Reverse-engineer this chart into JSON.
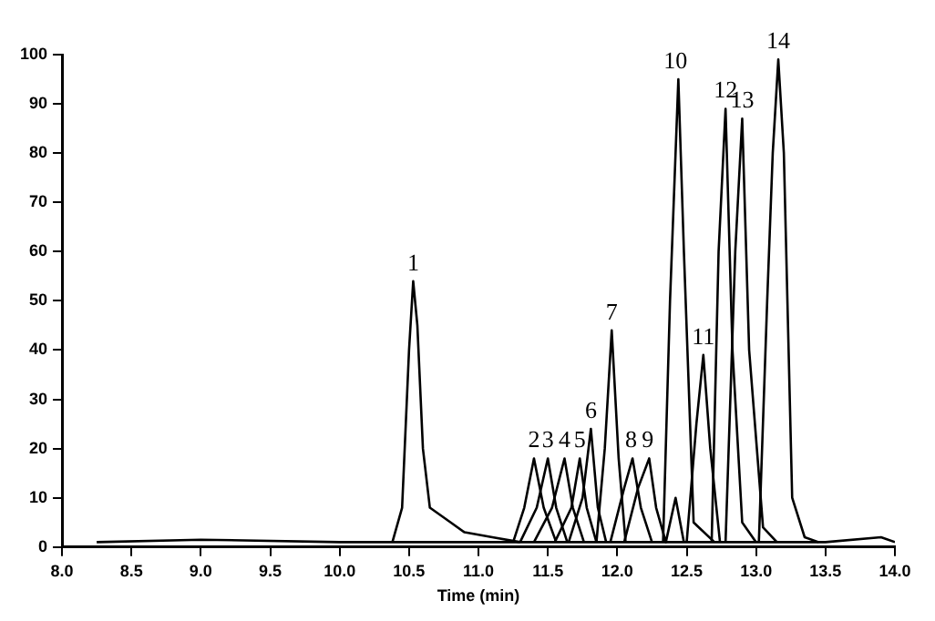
{
  "chart_data": {
    "type": "line",
    "xlabel": "Time (min)",
    "xlim": [
      8,
      14
    ],
    "xticks": [
      {
        "value": 8,
        "label": "8.0"
      },
      8.5,
      {
        "value": 9,
        "label": "9.0"
      },
      9.5,
      {
        "value": 10,
        "label": "10.0"
      },
      10.5,
      {
        "value": 11,
        "label": "11.0"
      },
      11.5,
      {
        "value": 12,
        "label": "12.0"
      },
      12.5,
      {
        "value": 13,
        "label": "13.0"
      },
      13.5,
      {
        "value": 14,
        "label": "14.0"
      }
    ],
    "ylim": [
      0,
      100
    ],
    "yticks": [
      0,
      10,
      20,
      30,
      40,
      50,
      60,
      70,
      80,
      90,
      100
    ],
    "grid": false,
    "legend": false,
    "marker": "none",
    "line_style": "solid",
    "series": [
      {
        "color": "#000000",
        "x": [
          8.25,
          9,
          10,
          11,
          12,
          13.5,
          13.9,
          14
        ],
        "values": [
          1,
          1.5,
          1,
          1,
          1,
          1,
          2,
          1
        ]
      },
      {
        "color": "#000000",
        "x": [
          10.38,
          10.45,
          10.5,
          10.53,
          10.56,
          10.6,
          10.65,
          10.8,
          10.9,
          11.1,
          11.3
        ],
        "values": [
          1,
          8,
          40,
          54,
          45,
          20,
          8,
          5,
          3,
          2,
          1
        ]
      },
      {
        "color": "#000000",
        "x": [
          11.25,
          11.33,
          11.4,
          11.47,
          11.56
        ],
        "values": [
          1,
          8,
          18,
          8,
          1
        ]
      },
      {
        "color": "#000000",
        "x": [
          11.3,
          11.42,
          11.5,
          11.56,
          11.64
        ],
        "values": [
          1,
          8,
          18,
          8,
          1
        ]
      },
      {
        "color": "#000000",
        "x": [
          11.4,
          11.53,
          11.62,
          11.68,
          11.76
        ],
        "values": [
          1,
          8,
          18,
          8,
          1
        ]
      },
      {
        "color": "#000000",
        "x": [
          11.55,
          11.67,
          11.73,
          11.78,
          11.85
        ],
        "values": [
          1,
          8,
          18,
          8,
          1
        ]
      },
      {
        "color": "#000000",
        "x": [
          11.65,
          11.75,
          11.81,
          11.86,
          11.92
        ],
        "values": [
          1,
          10,
          24,
          8,
          1
        ]
      },
      {
        "color": "#000000",
        "x": [
          11.85,
          11.91,
          11.96,
          12.01,
          12.06
        ],
        "values": [
          1,
          20,
          44,
          18,
          1
        ]
      },
      {
        "color": "#000000",
        "x": [
          11.95,
          12.05,
          12.11,
          12.17,
          12.25
        ],
        "values": [
          1,
          12,
          18,
          8,
          1
        ]
      },
      {
        "color": "#000000",
        "x": [
          12.05,
          12.15,
          12.23,
          12.28,
          12.35,
          12.42,
          12.48
        ],
        "values": [
          1,
          12,
          18,
          8,
          1,
          10,
          1
        ]
      },
      {
        "color": "#000000",
        "x": [
          12.33,
          12.38,
          12.44,
          12.48,
          12.55,
          12.7
        ],
        "values": [
          1,
          50,
          95,
          60,
          5,
          1
        ]
      },
      {
        "color": "#000000",
        "x": [
          12.5,
          12.57,
          12.62,
          12.67,
          12.74
        ],
        "values": [
          1,
          25,
          39,
          20,
          1
        ]
      },
      {
        "color": "#000000",
        "x": [
          12.68,
          12.73,
          12.78,
          12.83,
          12.9,
          13
        ],
        "values": [
          1,
          60,
          89,
          40,
          5,
          1
        ]
      },
      {
        "color": "#000000",
        "x": [
          12.78,
          12.85,
          12.9,
          12.95,
          13.05,
          13.15
        ],
        "values": [
          1,
          60,
          87,
          40,
          4,
          1
        ]
      },
      {
        "color": "#000000",
        "x": [
          13.02,
          13.08,
          13.12,
          13.16,
          13.2,
          13.26,
          13.35,
          13.45
        ],
        "values": [
          1,
          50,
          80,
          99,
          80,
          10,
          2,
          1
        ]
      }
    ],
    "annotations": [
      {
        "text": "1",
        "x": 10.53,
        "y": 54
      },
      {
        "text": "2",
        "x": 11.4,
        "y": 18
      },
      {
        "text": "3",
        "x": 11.5,
        "y": 18
      },
      {
        "text": "4",
        "x": 11.62,
        "y": 18
      },
      {
        "text": "5",
        "x": 11.73,
        "y": 18
      },
      {
        "text": "6",
        "x": 11.81,
        "y": 24
      },
      {
        "text": "7",
        "x": 11.96,
        "y": 44
      },
      {
        "text": "8",
        "x": 12.1,
        "y": 18
      },
      {
        "text": "9",
        "x": 12.22,
        "y": 18
      },
      {
        "text": "10",
        "x": 12.42,
        "y": 95
      },
      {
        "text": "11",
        "x": 12.62,
        "y": 39
      },
      {
        "text": "12",
        "x": 12.78,
        "y": 89
      },
      {
        "text": "13",
        "x": 12.9,
        "y": 87
      },
      {
        "text": "14",
        "x": 13.16,
        "y": 99
      }
    ]
  }
}
